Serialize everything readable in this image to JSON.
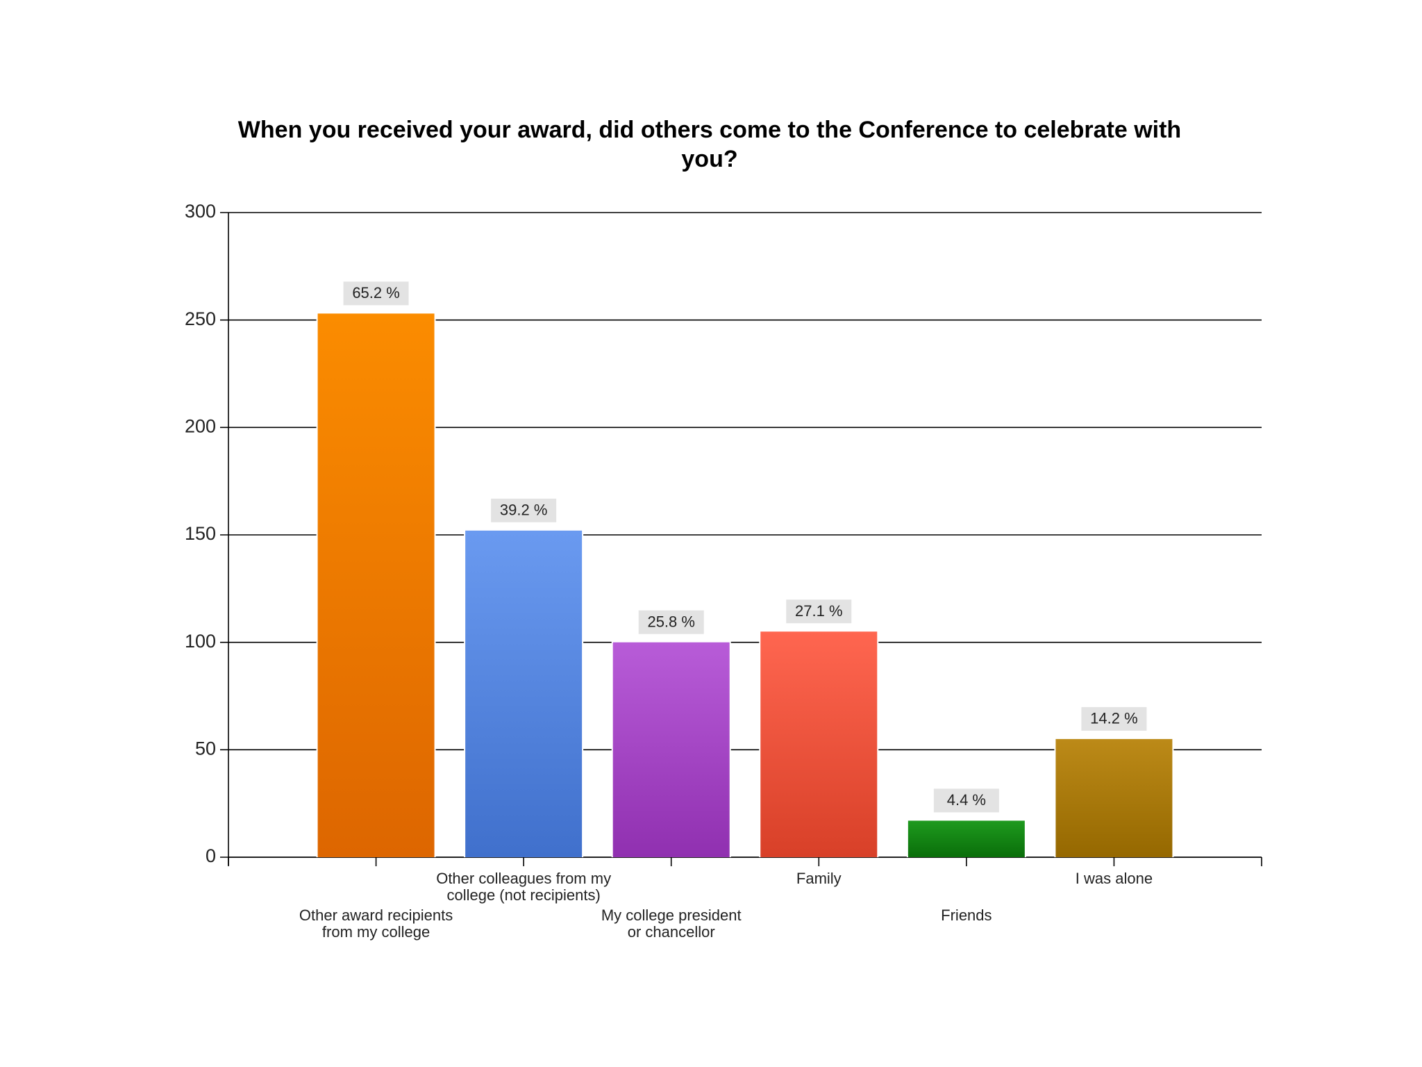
{
  "chart_data": {
    "type": "bar",
    "title": "When you received your award, did others come to the Conference to celebrate with you?",
    "title_lines": [
      "When you received your award, did others come to the Conference to celebrate with",
      "you?"
    ],
    "xlabel": "",
    "ylabel": "",
    "ylim": [
      0,
      300
    ],
    "yticks": [
      0,
      50,
      100,
      150,
      200,
      250,
      300
    ],
    "grid": true,
    "legend": "none",
    "categories": [
      "Other award recipients from my college",
      "Other colleagues from my college (not recipients)",
      "My college president or chancellor",
      "Family",
      "Friends",
      "I was alone"
    ],
    "category_label_lines": [
      [
        "Other award recipients",
        "from my college"
      ],
      [
        "Other colleagues from my",
        "college (not recipients)"
      ],
      [
        "My college president",
        "or chancellor"
      ],
      [
        "Family"
      ],
      [
        "Friends"
      ],
      [
        "I was alone"
      ]
    ],
    "values": [
      253,
      152,
      100,
      105,
      17,
      55
    ],
    "data_labels": [
      "65.2 %",
      "39.2 %",
      "25.8 %",
      "27.1 %",
      "4.4 %",
      "14.2 %"
    ],
    "colors": [
      [
        "#fb8c00",
        "#dd6600"
      ],
      [
        "#6a9af0",
        "#4070cc"
      ],
      [
        "#b85cd8",
        "#9030b0"
      ],
      [
        "#ff6650",
        "#d84028"
      ],
      [
        "#1e9a1e",
        "#0a6e0a"
      ],
      [
        "#bc8a18",
        "#956800"
      ]
    ]
  }
}
